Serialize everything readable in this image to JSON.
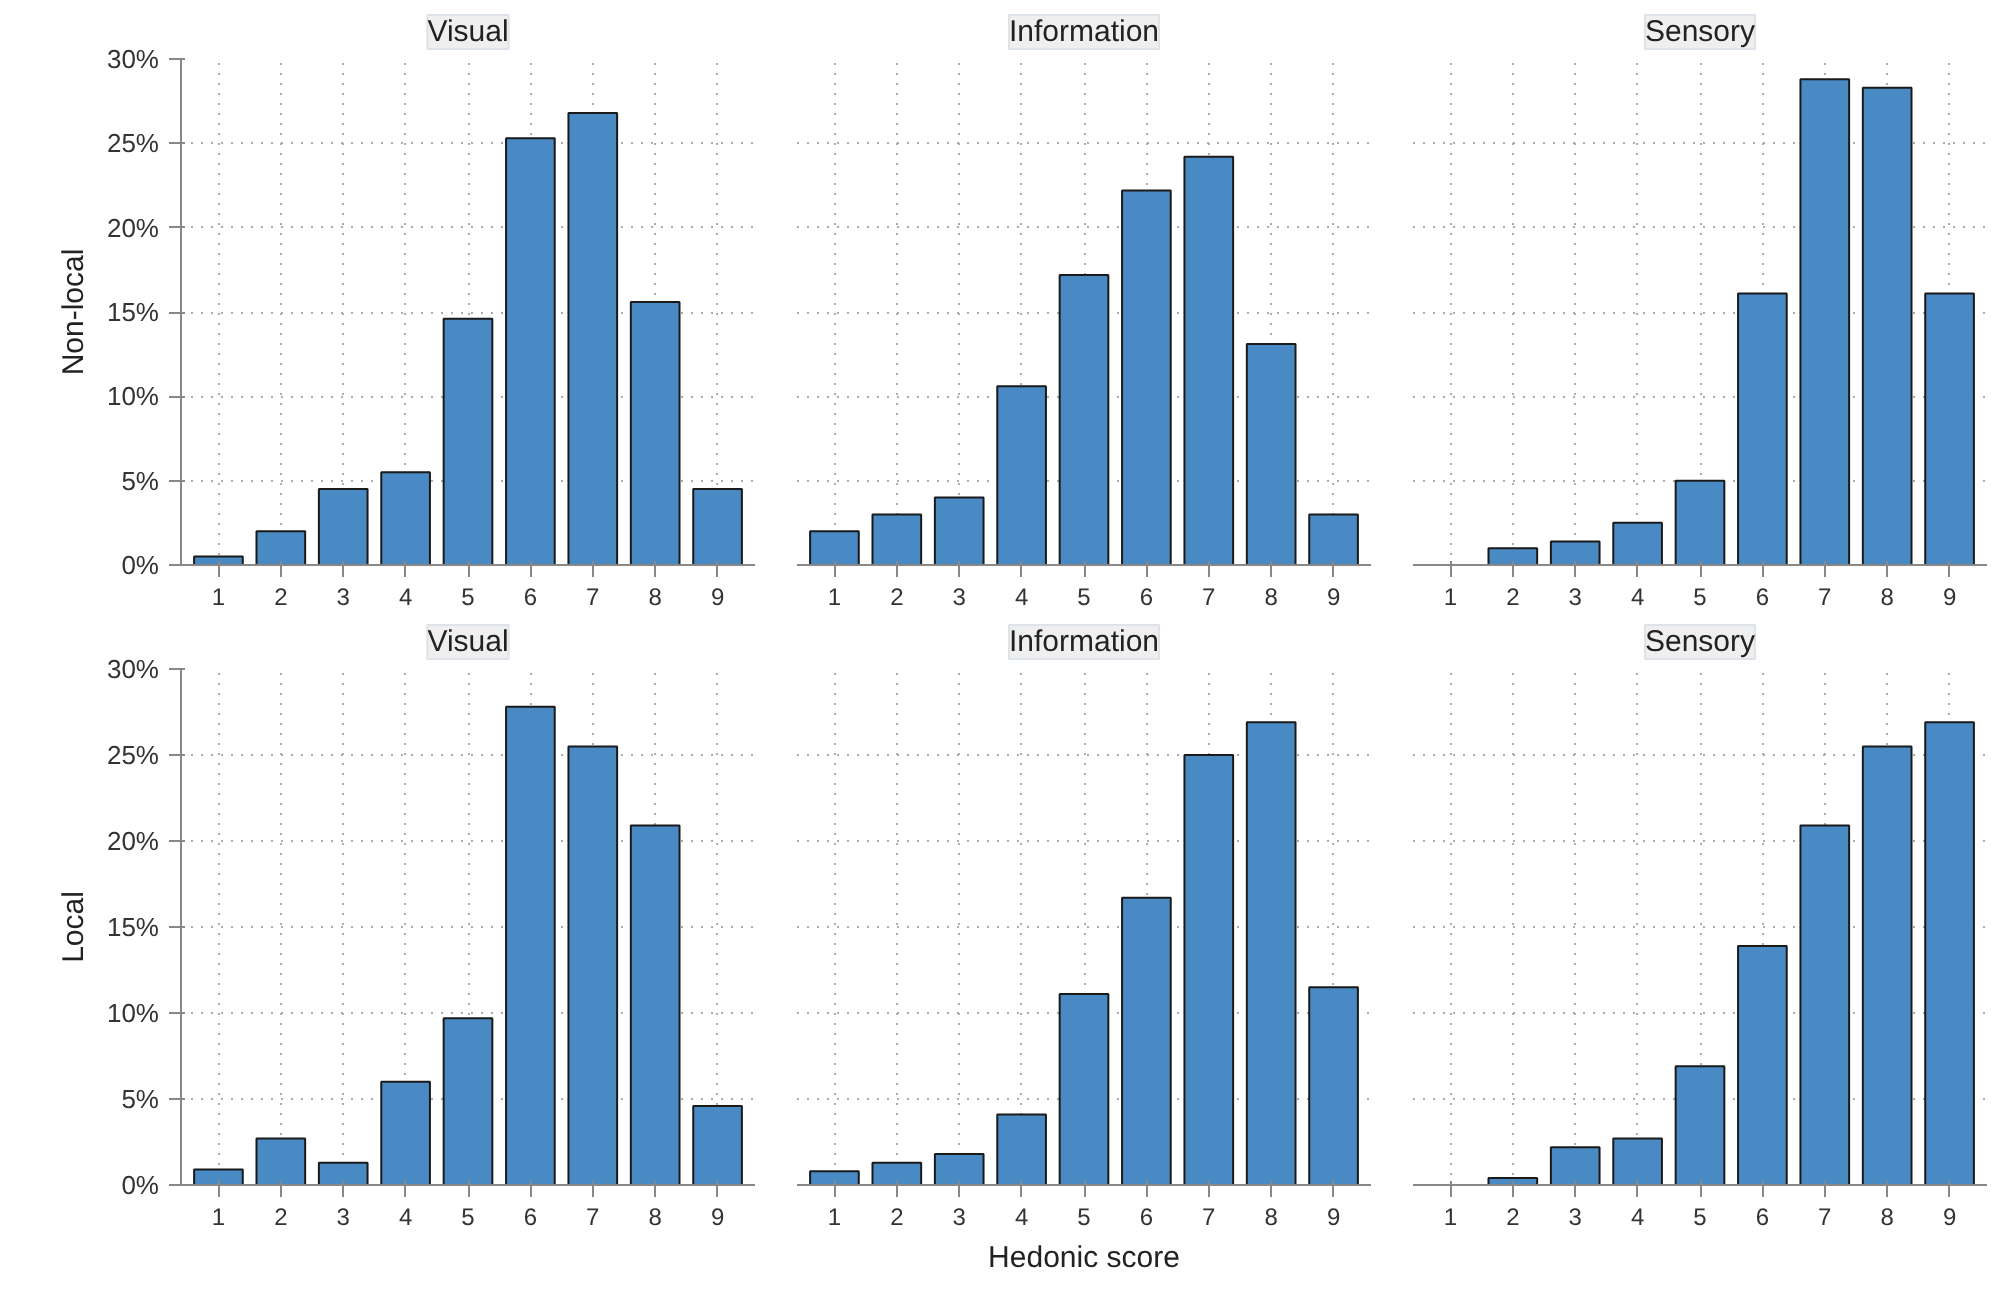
{
  "chart_data": [
    {
      "type": "bar",
      "title": "Visual",
      "ylabel": "Non-local",
      "categories": [
        "1",
        "2",
        "3",
        "4",
        "5",
        "6",
        "7",
        "8",
        "9"
      ],
      "values": [
        0.5,
        2.0,
        4.5,
        5.5,
        14.6,
        25.3,
        26.8,
        15.6,
        4.5
      ],
      "color": "#4a8ac4",
      "ylim": [
        0,
        30
      ],
      "yticks": [
        {
          "value": 0,
          "label": "0%"
        },
        {
          "value": 5,
          "label": "5%"
        },
        {
          "value": 10,
          "label": "10%"
        },
        {
          "value": 15,
          "label": "15%"
        },
        {
          "value": 20,
          "label": "20%"
        },
        {
          "value": 25,
          "label": "25%"
        },
        {
          "value": 30,
          "label": "30%"
        }
      ],
      "grid": true
    },
    {
      "type": "bar",
      "title": "Information",
      "categories": [
        "1",
        "2",
        "3",
        "4",
        "5",
        "6",
        "7",
        "8",
        "9"
      ],
      "values": [
        2.0,
        3.0,
        4.0,
        10.6,
        17.2,
        22.2,
        24.2,
        13.1,
        3.0
      ],
      "color": "#4a8ac4",
      "ylim": [
        0,
        30
      ],
      "yticks": [
        0,
        5,
        10,
        15,
        20,
        25,
        30
      ],
      "grid": true,
      "tick_labels": "x"
    },
    {
      "type": "bar",
      "title": "Sensory",
      "categories": [
        "1",
        "2",
        "3",
        "4",
        "5",
        "6",
        "7",
        "8",
        "9"
      ],
      "values": [
        null,
        1.0,
        1.4,
        2.5,
        5.0,
        16.1,
        28.8,
        28.3,
        16.1
      ],
      "color": "#4a8ac4",
      "ylim": [
        0,
        30
      ],
      "yticks": [
        0,
        5,
        10,
        15,
        20,
        25,
        30
      ],
      "grid": true,
      "tick_labels": "x"
    },
    {
      "type": "bar",
      "title": "Visual",
      "ylabel": "Local",
      "categories": [
        "1",
        "2",
        "3",
        "4",
        "5",
        "6",
        "7",
        "8",
        "9"
      ],
      "values": [
        0.9,
        2.7,
        1.3,
        6.0,
        9.7,
        27.8,
        25.5,
        20.9,
        4.6
      ],
      "color": "#4a8ac4",
      "ylim": [
        0,
        30
      ],
      "yticks": [
        {
          "value": 0,
          "label": "0%"
        },
        {
          "value": 5,
          "label": "5%"
        },
        {
          "value": 10,
          "label": "10%"
        },
        {
          "value": 15,
          "label": "15%"
        },
        {
          "value": 20,
          "label": "20%"
        },
        {
          "value": 25,
          "label": "25%"
        },
        {
          "value": 30,
          "label": "30%"
        }
      ],
      "grid": true
    },
    {
      "type": "bar",
      "title": "Information",
      "xlabel": "Hedonic score",
      "categories": [
        "1",
        "2",
        "3",
        "4",
        "5",
        "6",
        "7",
        "8",
        "9"
      ],
      "values": [
        0.8,
        1.3,
        1.8,
        4.1,
        11.1,
        16.7,
        25.0,
        26.9,
        11.5
      ],
      "color": "#4a8ac4",
      "ylim": [
        0,
        30
      ],
      "yticks": [
        0,
        5,
        10,
        15,
        20,
        25,
        30
      ],
      "grid": true,
      "tick_labels": "x"
    },
    {
      "type": "bar",
      "title": "Sensory",
      "categories": [
        "1",
        "2",
        "3",
        "4",
        "5",
        "6",
        "7",
        "8",
        "9"
      ],
      "values": [
        null,
        0.4,
        2.2,
        2.7,
        6.9,
        13.9,
        20.9,
        25.5,
        26.9
      ],
      "color": "#4a8ac4",
      "ylim": [
        0,
        30
      ],
      "yticks": [
        0,
        5,
        10,
        15,
        20,
        25,
        30
      ],
      "grid": true,
      "tick_labels": "x"
    }
  ]
}
